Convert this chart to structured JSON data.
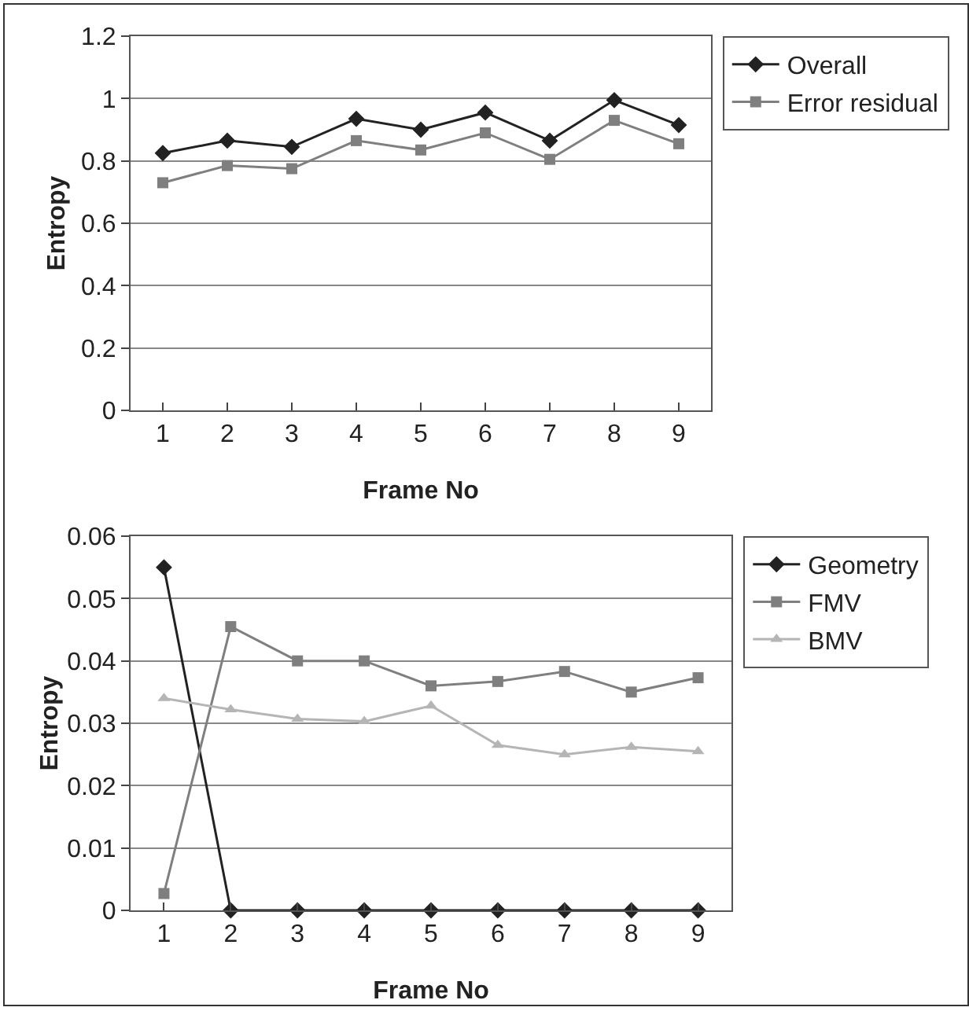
{
  "chart_data": [
    {
      "type": "line",
      "xlabel": "Frame No",
      "ylabel": "Entropy",
      "categories": [
        "1",
        "2",
        "3",
        "4",
        "5",
        "6",
        "7",
        "8",
        "9"
      ],
      "ylim": [
        0,
        1.2
      ],
      "yticks": [
        0,
        0.2,
        0.4,
        0.6,
        0.8,
        1,
        1.2
      ],
      "grid": "y",
      "legend": "top right",
      "series": [
        {
          "name": "Overall",
          "color": "#222222",
          "marker": "diamond",
          "values": [
            0.825,
            0.865,
            0.845,
            0.935,
            0.9,
            0.955,
            0.865,
            0.995,
            0.915
          ]
        },
        {
          "name": "Error residual",
          "color": "#7f7f7f",
          "marker": "square",
          "values": [
            0.73,
            0.785,
            0.775,
            0.865,
            0.835,
            0.89,
            0.805,
            0.93,
            0.855
          ]
        }
      ]
    },
    {
      "type": "line",
      "xlabel": "Frame No",
      "ylabel": "Entropy",
      "categories": [
        "1",
        "2",
        "3",
        "4",
        "5",
        "6",
        "7",
        "8",
        "9"
      ],
      "ylim": [
        0,
        0.06
      ],
      "yticks": [
        0,
        0.01,
        0.02,
        0.03,
        0.04,
        0.05,
        0.06
      ],
      "grid": "y",
      "legend": "top right",
      "series": [
        {
          "name": "Geometry",
          "color": "#222222",
          "marker": "diamond",
          "values": [
            0.055,
            0,
            0,
            0,
            0,
            0,
            0,
            0,
            0
          ]
        },
        {
          "name": "FMV",
          "color": "#7f7f7f",
          "marker": "square",
          "values": [
            0.0027,
            0.0455,
            0.04,
            0.04,
            0.036,
            0.0367,
            0.0383,
            0.035,
            0.0373
          ]
        },
        {
          "name": "BMV",
          "color": "#b5b5b5",
          "marker": "triangle",
          "values": [
            0.034,
            0.0322,
            0.0307,
            0.0303,
            0.0328,
            0.0265,
            0.025,
            0.0262,
            0.0255
          ]
        }
      ]
    }
  ]
}
